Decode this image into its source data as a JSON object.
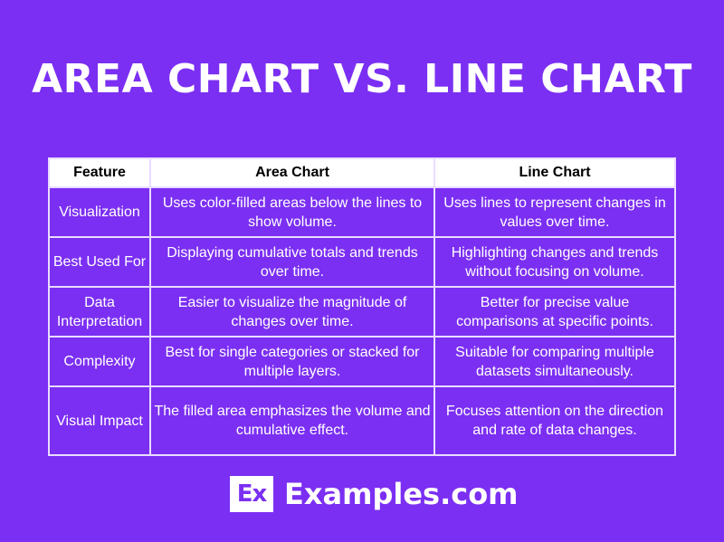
{
  "title": "AREA CHART VS. LINE CHART",
  "table": {
    "headers": [
      "Feature",
      "Area Chart",
      "Line Chart"
    ],
    "rows": [
      {
        "feature": "Visualization",
        "area": "Uses color-filled areas below the lines to show volume.",
        "line": "Uses lines to represent changes in values over time."
      },
      {
        "feature": "Best Used For",
        "area": "Displaying cumulative totals and trends over time.",
        "line": "Highlighting changes and trends without focusing on volume."
      },
      {
        "feature": "Data Interpretation",
        "area": "Easier to visualize the magnitude of changes over time.",
        "line": "Better for precise value comparisons at specific points."
      },
      {
        "feature": "Complexity",
        "area": "Best for single categories or stacked for multiple layers.",
        "line": "Suitable for comparing multiple datasets simultaneously."
      },
      {
        "feature": "Visual Impact",
        "area": "The filled area emphasizes the volume and cumulative effect.",
        "line": "Focuses attention on the direction and rate of data changes."
      }
    ]
  },
  "brand": {
    "logo_text": "Ex",
    "name": "Examples.com"
  },
  "colors": {
    "background": "#7b2ff2",
    "header_bg": "#ffffff",
    "border": "#e9dcff",
    "text": "#ffffff"
  }
}
